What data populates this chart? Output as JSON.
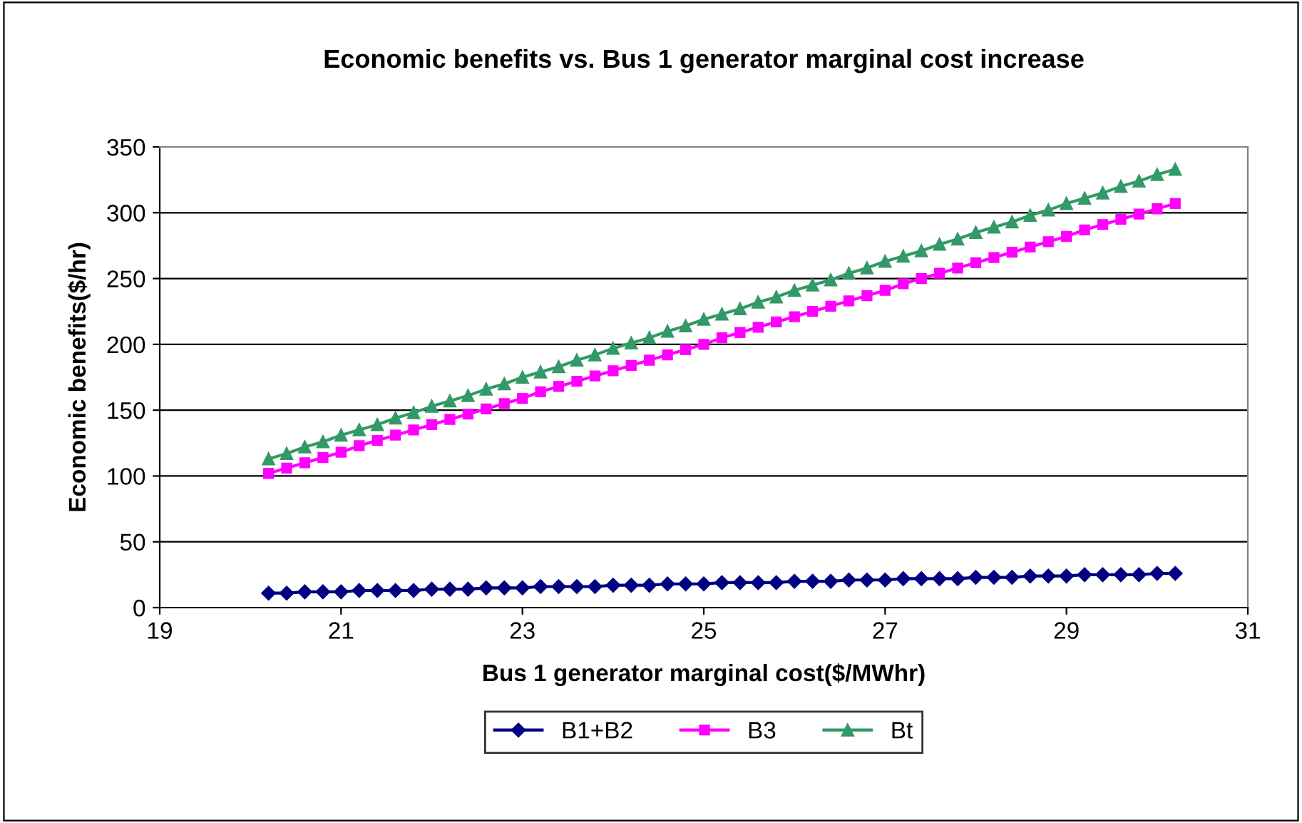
{
  "chart_data": {
    "type": "line",
    "title": "Economic benefits vs. Bus 1 generator marginal cost increase",
    "xlabel": "Bus 1 generator marginal cost($/MWhr)",
    "ylabel": "Economic benefits($/hr)",
    "x": [
      20.2,
      20.4,
      20.6,
      20.8,
      21.0,
      21.2,
      21.4,
      21.6,
      21.8,
      22.0,
      22.2,
      22.4,
      22.6,
      22.8,
      23.0,
      23.2,
      23.4,
      23.6,
      23.8,
      24.0,
      24.2,
      24.4,
      24.6,
      24.8,
      25.0,
      25.2,
      25.4,
      25.6,
      25.8,
      26.0,
      26.2,
      26.4,
      26.6,
      26.8,
      27.0,
      27.2,
      27.4,
      27.6,
      27.8,
      28.0,
      28.2,
      28.4,
      28.6,
      28.8,
      29.0,
      29.2,
      29.4,
      29.6,
      29.8,
      30.0,
      30.2
    ],
    "series": [
      {
        "name": "B1+B2",
        "color": "#000080",
        "marker": "diamond",
        "values": [
          11,
          11,
          12,
          12,
          12,
          13,
          13,
          13,
          13,
          14,
          14,
          14,
          15,
          15,
          15,
          16,
          16,
          16,
          16,
          17,
          17,
          17,
          18,
          18,
          18,
          19,
          19,
          19,
          19,
          20,
          20,
          20,
          21,
          21,
          21,
          22,
          22,
          22,
          22,
          23,
          23,
          23,
          24,
          24,
          24,
          25,
          25,
          25,
          25,
          26,
          26
        ]
      },
      {
        "name": "B3",
        "color": "#ff00ff",
        "marker": "square",
        "values": [
          102,
          106,
          110,
          114,
          118,
          123,
          127,
          131,
          135,
          139,
          143,
          147,
          151,
          155,
          159,
          164,
          168,
          172,
          176,
          180,
          184,
          188,
          192,
          196,
          200,
          205,
          209,
          213,
          217,
          221,
          225,
          229,
          233,
          237,
          241,
          246,
          250,
          254,
          258,
          262,
          266,
          270,
          274,
          278,
          282,
          287,
          291,
          295,
          299,
          303,
          307
        ]
      },
      {
        "name": "Bt",
        "color": "#339966",
        "marker": "triangle",
        "values": [
          113,
          117,
          122,
          126,
          131,
          135,
          139,
          144,
          148,
          153,
          157,
          161,
          166,
          170,
          175,
          179,
          183,
          188,
          192,
          197,
          201,
          205,
          210,
          214,
          219,
          223,
          227,
          232,
          236,
          241,
          245,
          249,
          254,
          258,
          263,
          267,
          271,
          276,
          280,
          285,
          289,
          293,
          298,
          302,
          307,
          311,
          315,
          320,
          324,
          329,
          333
        ]
      }
    ],
    "xlim": [
      19,
      31
    ],
    "xticks": [
      19,
      21,
      23,
      25,
      27,
      29,
      31
    ],
    "ylim": [
      0,
      350
    ],
    "yticks": [
      0,
      50,
      100,
      150,
      200,
      250,
      300,
      350
    ],
    "grid": "y",
    "legend": "bottom",
    "line_style": "solid"
  }
}
